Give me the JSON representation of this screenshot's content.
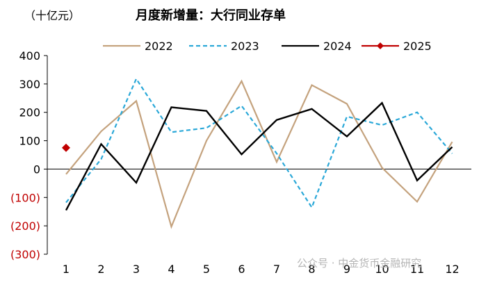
{
  "chart_data": {
    "type": "line",
    "title": "月度新增量：大行同业存单",
    "unit_label": "（十亿元）",
    "xlabel": "",
    "ylabel": "",
    "ylim": [
      -300,
      400
    ],
    "yticks": [
      400,
      300,
      200,
      100,
      0,
      -100,
      -200,
      -300
    ],
    "ytick_labels": [
      "400",
      "300",
      "200",
      "100",
      "0",
      "(100)",
      "(200)",
      "(300)"
    ],
    "x": [
      1,
      2,
      3,
      4,
      5,
      6,
      7,
      8,
      9,
      10,
      11,
      12
    ],
    "grid": false,
    "legend_position": "top",
    "series": [
      {
        "name": "2022",
        "style": "solid",
        "color": "#c4a27d",
        "values": [
          -18,
          133,
          240,
          -203,
          100,
          310,
          25,
          296,
          230,
          5,
          -115,
          96
        ]
      },
      {
        "name": "2023",
        "style": "dashed",
        "color": "#2aa8d8",
        "values": [
          -118,
          35,
          318,
          130,
          145,
          223,
          55,
          -135,
          185,
          155,
          200,
          55
        ]
      },
      {
        "name": "2024",
        "style": "solid",
        "color": "#000000",
        "values": [
          -145,
          88,
          -48,
          218,
          205,
          52,
          173,
          212,
          115,
          233,
          -40,
          78
        ]
      },
      {
        "name": "2025",
        "style": "marker",
        "color": "#c00000",
        "values": [
          75,
          null,
          null,
          null,
          null,
          null,
          null,
          null,
          null,
          null,
          null,
          null
        ]
      }
    ]
  },
  "watermark": "公众号 · 中金货币金融研究"
}
